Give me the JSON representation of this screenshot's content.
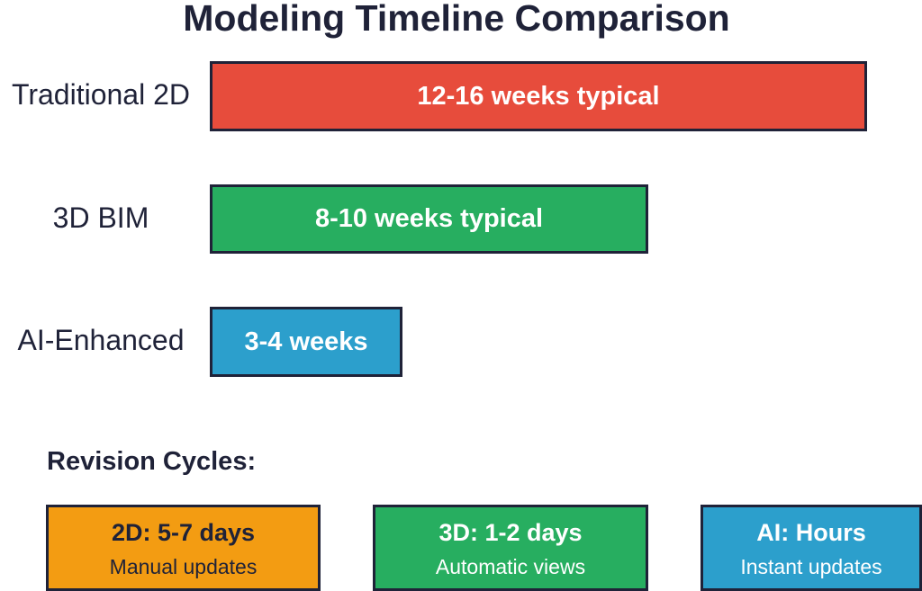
{
  "title": "Modeling Timeline Comparison",
  "bars": [
    {
      "label": "Traditional 2D",
      "text": "12-16 weeks typical"
    },
    {
      "label": "3D BIM",
      "text": "8-10 weeks typical"
    },
    {
      "label": "AI-Enhanced",
      "text": "3-4 weeks"
    }
  ],
  "revision": {
    "title": "Revision Cycles:",
    "boxes": [
      {
        "title": "2D: 5-7 days",
        "subtitle": "Manual updates"
      },
      {
        "title": "3D: 1-2 days",
        "subtitle": "Automatic views"
      },
      {
        "title": "AI: Hours",
        "subtitle": "Instant updates"
      }
    ]
  }
}
